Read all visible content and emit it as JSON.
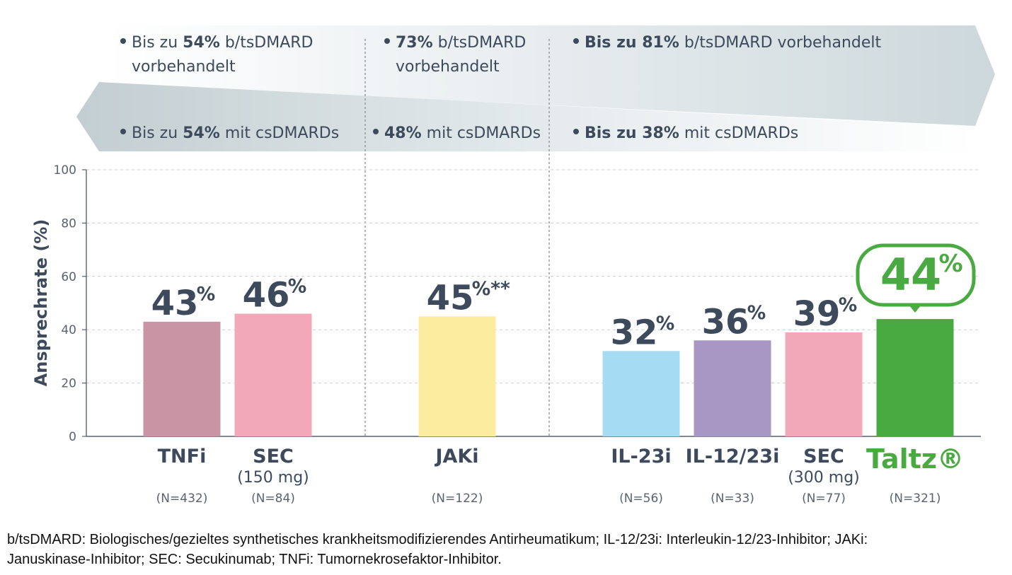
{
  "header": {
    "top_row": [
      {
        "pre": "Bis zu ",
        "bold": "54%",
        "post": " b/tsDMARD",
        "line2": "vorbehandelt"
      },
      {
        "pre": "",
        "bold": "73%",
        "post": " b/tsDMARD",
        "line2": "vorbehandelt"
      },
      {
        "pre": "",
        "bold": "Bis zu 81%",
        "post": " b/tsDMARD vorbehandelt",
        "line2": ""
      }
    ],
    "bottom_row": [
      {
        "pre": "Bis zu ",
        "bold": "54%",
        "post": " mit csDMARDs"
      },
      {
        "pre": "",
        "bold": "48%",
        "post": " mit csDMARDs"
      },
      {
        "pre": "",
        "bold": "Bis zu 38%",
        "post": " mit csDMARDs"
      }
    ]
  },
  "chart_data": {
    "type": "bar",
    "ylabel": "Ansprechrate (%)",
    "ylim": [
      0,
      100
    ],
    "yticks": [
      0,
      20,
      40,
      60,
      80,
      100
    ],
    "grid": true,
    "categories": [
      "TNFi",
      "SEC",
      "JAKi",
      "IL-23i",
      "IL-12/23i",
      "SEC",
      "Taltz®"
    ],
    "sublabels": [
      "",
      "(150 mg)",
      "",
      "",
      "",
      "(300 mg)",
      ""
    ],
    "n_labels": [
      "(N=432)",
      "(N=84)",
      "(N=122)",
      "(N=56)",
      "(N=33)",
      "(N=77)",
      "(N=321)"
    ],
    "values": [
      43,
      46,
      45,
      32,
      36,
      39,
      44
    ],
    "value_labels": [
      "43",
      "46",
      "45",
      "32",
      "36",
      "39",
      "44"
    ],
    "value_suffix": [
      "%",
      "%",
      "%**",
      "%",
      "%",
      "%",
      "%"
    ],
    "colors": [
      "#c994a4",
      "#f2a8b8",
      "#fcec9f",
      "#a5dcf4",
      "#a896c4",
      "#f2a8b8",
      "#4aaa42"
    ],
    "highlight_index": 6,
    "highlight_color": "#4aaa42",
    "text_color": "#3d4a5c"
  },
  "footnote": {
    "line1": "b/tsDMARD: Biologisches/gezieltes synthetisches krankheitsmodifizierendes Antirheumatikum; IL-12/23i: Interleukin-12/23-Inhibitor; JAKi:",
    "line2": "Januskinase-Inhibitor; SEC: Secukinumab; TNFi: Tumornekrosefaktor-Inhibitor."
  }
}
